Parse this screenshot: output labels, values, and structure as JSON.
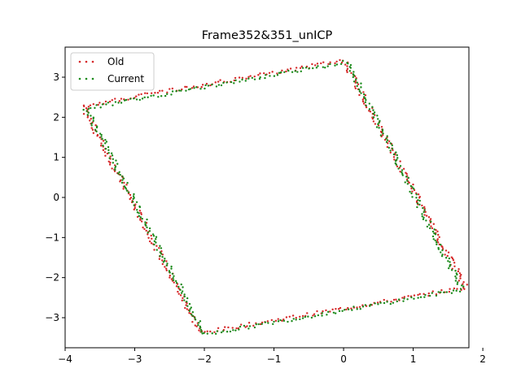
{
  "chart_data": {
    "type": "scatter",
    "title": "Frame352&351_unICP",
    "xlabel": "",
    "ylabel": "",
    "xlim": [
      -4.0,
      1.8
    ],
    "ylim": [
      -3.75,
      3.75
    ],
    "xticks": [
      -4,
      -3,
      -2,
      -1,
      0,
      1,
      2
    ],
    "yticks": [
      -3,
      -2,
      -1,
      0,
      1,
      2,
      3
    ],
    "xtick_labels": [
      "−4",
      "−3",
      "−2",
      "−1",
      "0",
      "1",
      "2"
    ],
    "ytick_labels": [
      "−3",
      "−2",
      "−1",
      "0",
      "1",
      "2",
      "3"
    ],
    "grid": false,
    "legend": {
      "placement": "upper-left"
    },
    "series": [
      {
        "name": "Old",
        "color": "#d62728",
        "outline": [
          [
            0.0,
            3.42
          ],
          [
            -3.75,
            2.28
          ],
          [
            -2.05,
            -3.38
          ],
          [
            1.75,
            -2.25
          ],
          [
            0.0,
            3.42
          ]
        ]
      },
      {
        "name": "Current",
        "color": "#1a8a1a",
        "outline": [
          [
            0.05,
            3.38
          ],
          [
            -3.7,
            2.22
          ],
          [
            -2.0,
            -3.42
          ],
          [
            1.7,
            -2.3
          ],
          [
            0.05,
            3.38
          ]
        ]
      }
    ]
  }
}
